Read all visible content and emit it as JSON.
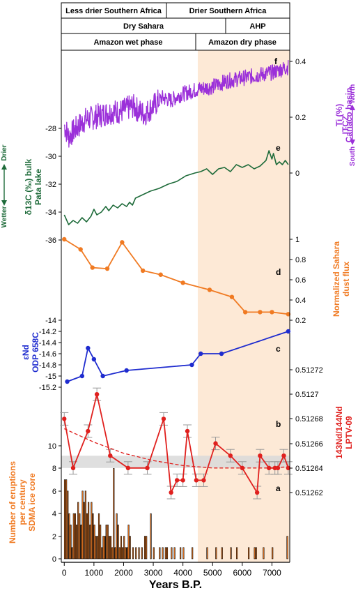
{
  "colors": {
    "shade": "#fde9d6",
    "band": "#d9d9d9",
    "ti": "#9b30d9",
    "d13c": "#1e6b3a",
    "dust": "#f07a22",
    "end": "#1f2ccf",
    "ndlptv": "#e0201e",
    "eruptions": "#f07a22",
    "axis": "#000000"
  },
  "header": {
    "row1": [
      "Less drier Southern Africa",
      "Drier Southern Africa"
    ],
    "row2": [
      "Dry Sahara",
      "AHP"
    ],
    "row3": [
      "Amazon wet phase",
      "Amazon dry phase"
    ]
  },
  "chart_data": {
    "type": "line",
    "xlabel": "Years B.P.",
    "xlim": [
      -100,
      7600
    ],
    "x_ticks": [
      "0",
      "1000",
      "2000",
      "3000",
      "4000",
      "5000",
      "6000",
      "7000"
    ],
    "shaded_region": [
      4500,
      7600
    ],
    "panels": [
      {
        "id": "f",
        "label": "f",
        "ylabel": [
          "Ti (%)",
          "Cariaco basin"
        ],
        "side_arrow": {
          "label": "ITCZ",
          "top": "North",
          "bottom": "South"
        },
        "axis_side": "right",
        "ticks": [
          "0.4",
          "0.2",
          "0"
        ],
        "type": "line",
        "series_x_range": [
          0,
          7550
        ],
        "anchors": [
          [
            0,
            0.17
          ],
          [
            150,
            0.13
          ],
          [
            400,
            0.16
          ],
          [
            700,
            0.19
          ],
          [
            1000,
            0.2
          ],
          [
            1300,
            0.21
          ],
          [
            1600,
            0.22
          ],
          [
            1900,
            0.22
          ],
          [
            2300,
            0.24
          ],
          [
            2700,
            0.21
          ],
          [
            3000,
            0.24
          ],
          [
            3300,
            0.27
          ],
          [
            3600,
            0.26
          ],
          [
            3900,
            0.28
          ],
          [
            4200,
            0.29
          ],
          [
            4500,
            0.3
          ],
          [
            5000,
            0.31
          ],
          [
            5500,
            0.33
          ],
          [
            6000,
            0.34
          ],
          [
            6500,
            0.35
          ],
          [
            7000,
            0.36
          ],
          [
            7550,
            0.38
          ]
        ]
      },
      {
        "id": "e",
        "label": "e",
        "ylabel": [
          "δ13C (‰) bulk",
          "Pata lake"
        ],
        "side_arrow": {
          "top": "Drier",
          "bottom": "Wetter"
        },
        "axis_side": "left",
        "ticks": [
          "-28",
          "-30",
          "-32",
          "-34",
          "-36"
        ],
        "type": "line",
        "points": [
          [
            0,
            -34.2
          ],
          [
            150,
            -34.9
          ],
          [
            300,
            -34.6
          ],
          [
            450,
            -34.8
          ],
          [
            600,
            -34.4
          ],
          [
            750,
            -34.7
          ],
          [
            900,
            -34.3
          ],
          [
            1000,
            -33.8
          ],
          [
            1100,
            -34.2
          ],
          [
            1250,
            -34.0
          ],
          [
            1400,
            -33.6
          ],
          [
            1500,
            -33.9
          ],
          [
            1650,
            -33.5
          ],
          [
            1800,
            -33.7
          ],
          [
            1950,
            -33.4
          ],
          [
            2100,
            -33.6
          ],
          [
            2200,
            -33.3
          ],
          [
            2300,
            -33.5
          ],
          [
            2400,
            -33.0
          ],
          [
            2600,
            -32.8
          ],
          [
            2900,
            -32.5
          ],
          [
            3200,
            -32.3
          ],
          [
            3500,
            -32.0
          ],
          [
            3800,
            -31.8
          ],
          [
            4100,
            -31.4
          ],
          [
            4400,
            -31.2
          ],
          [
            4600,
            -31.1
          ],
          [
            4800,
            -30.9
          ],
          [
            5000,
            -31.3
          ],
          [
            5200,
            -30.9
          ],
          [
            5400,
            -30.8
          ],
          [
            5600,
            -31.1
          ],
          [
            5800,
            -30.6
          ],
          [
            6000,
            -30.8
          ],
          [
            6200,
            -30.6
          ],
          [
            6400,
            -30.9
          ],
          [
            6600,
            -30.7
          ],
          [
            6800,
            -30.3
          ],
          [
            6900,
            -29.6
          ],
          [
            7000,
            -30.2
          ],
          [
            7050,
            -29.8
          ],
          [
            7150,
            -30.6
          ],
          [
            7250,
            -30.4
          ],
          [
            7350,
            -30.6
          ],
          [
            7450,
            -30.3
          ],
          [
            7550,
            -30.6
          ]
        ]
      },
      {
        "id": "d",
        "label": "d",
        "ylabel": [
          "Normalized Sahara",
          "dust flux"
        ],
        "axis_side": "right",
        "ticks": [
          "1",
          "0.8",
          "0.6",
          "0.4",
          "0.2"
        ],
        "type": "line",
        "points": [
          [
            0,
            1.0
          ],
          [
            550,
            0.9
          ],
          [
            950,
            0.72
          ],
          [
            1450,
            0.71
          ],
          [
            1950,
            0.97
          ],
          [
            2650,
            0.69
          ],
          [
            3250,
            0.65
          ],
          [
            4000,
            0.57
          ],
          [
            4900,
            0.5
          ],
          [
            5650,
            0.43
          ],
          [
            6100,
            0.28
          ],
          [
            6600,
            0.28
          ],
          [
            7000,
            0.28
          ],
          [
            7550,
            0.26
          ]
        ]
      },
      {
        "id": "c",
        "label": "c",
        "ylabel": [
          "εNd",
          "ODP 658C"
        ],
        "axis_side": "left",
        "ticks": [
          "-14",
          "-14.2",
          "-14.4",
          "-14.6",
          "-14.8",
          "-15",
          "-15.2"
        ],
        "type": "line",
        "points": [
          [
            100,
            -15.1
          ],
          [
            600,
            -15.0
          ],
          [
            800,
            -14.5
          ],
          [
            1000,
            -14.7
          ],
          [
            1300,
            -15.0
          ],
          [
            2100,
            -14.9
          ],
          [
            4300,
            -14.8
          ],
          [
            4600,
            -14.6
          ],
          [
            5300,
            -14.6
          ],
          [
            7550,
            -14.2
          ]
        ]
      },
      {
        "id": "b",
        "label": "b",
        "ylabel": [
          "143Nd/144Nd",
          "LPTV-09"
        ],
        "axis_side": "right",
        "ticks": [
          "0.51272",
          "0.5127",
          "0.51268",
          "0.51266",
          "0.51264",
          "0.51262"
        ],
        "type": "line",
        "band": [
          0.51264,
          0.51265
        ],
        "points": [
          [
            0,
            0.51268
          ],
          [
            300,
            0.51264
          ],
          [
            800,
            0.51267
          ],
          [
            1100,
            0.5127
          ],
          [
            1550,
            0.51265
          ],
          [
            2150,
            0.51264
          ],
          [
            2800,
            0.51264
          ],
          [
            3350,
            0.51268
          ],
          [
            3600,
            0.51262
          ],
          [
            3800,
            0.51263
          ],
          [
            4000,
            0.51263
          ],
          [
            4150,
            0.51267
          ],
          [
            4450,
            0.51263
          ],
          [
            4700,
            0.51263
          ],
          [
            5100,
            0.51266
          ],
          [
            5600,
            0.51265
          ],
          [
            6000,
            0.51264
          ],
          [
            6500,
            0.51262
          ],
          [
            6600,
            0.51265
          ],
          [
            6900,
            0.51264
          ],
          [
            7100,
            0.51264
          ],
          [
            7200,
            0.51264
          ],
          [
            7400,
            0.51265
          ],
          [
            7550,
            0.51264
          ]
        ],
        "trend": [
          [
            0,
            0.512672
          ],
          [
            1000,
            0.512661
          ],
          [
            2000,
            0.512652
          ],
          [
            3000,
            0.512646
          ],
          [
            4000,
            0.512642
          ],
          [
            5000,
            0.51264
          ],
          [
            6000,
            0.51264
          ],
          [
            7000,
            0.51264
          ],
          [
            7550,
            0.512641
          ]
        ]
      },
      {
        "id": "a",
        "label": "a",
        "ylabel": [
          "Number of eruptions",
          "per century",
          "SDMA ice core"
        ],
        "axis_side": "left",
        "ticks": [
          "10",
          "8",
          "6",
          "4",
          "2",
          "0"
        ],
        "type": "bar",
        "bin_width": 50,
        "bars": [
          [
            0,
            7
          ],
          [
            50,
            7
          ],
          [
            100,
            6
          ],
          [
            150,
            4
          ],
          [
            200,
            3
          ],
          [
            250,
            1
          ],
          [
            300,
            4
          ],
          [
            350,
            4
          ],
          [
            400,
            3
          ],
          [
            450,
            5
          ],
          [
            500,
            4
          ],
          [
            550,
            3
          ],
          [
            600,
            6
          ],
          [
            650,
            5
          ],
          [
            700,
            6
          ],
          [
            750,
            4
          ],
          [
            800,
            5
          ],
          [
            850,
            3
          ],
          [
            900,
            5
          ],
          [
            950,
            4
          ],
          [
            1000,
            3
          ],
          [
            1050,
            2
          ],
          [
            1100,
            2
          ],
          [
            1150,
            4
          ],
          [
            1200,
            3
          ],
          [
            1250,
            1
          ],
          [
            1300,
            2
          ],
          [
            1350,
            2
          ],
          [
            1400,
            3
          ],
          [
            1450,
            3
          ],
          [
            1500,
            2
          ],
          [
            1550,
            2
          ],
          [
            1600,
            1
          ],
          [
            1650,
            8
          ],
          [
            1700,
            1
          ],
          [
            1750,
            4
          ],
          [
            1800,
            3
          ],
          [
            1850,
            1
          ],
          [
            1900,
            2
          ],
          [
            1950,
            1
          ],
          [
            2000,
            2
          ],
          [
            2050,
            1
          ],
          [
            2100,
            1
          ],
          [
            2150,
            3
          ],
          [
            2200,
            2
          ],
          [
            2300,
            1
          ],
          [
            2400,
            1
          ],
          [
            2500,
            1
          ],
          [
            2600,
            1
          ],
          [
            2700,
            2
          ],
          [
            2750,
            2
          ],
          [
            2900,
            4
          ],
          [
            3000,
            1
          ],
          [
            3200,
            1
          ],
          [
            3300,
            1
          ],
          [
            3400,
            1
          ],
          [
            3450,
            1
          ],
          [
            3600,
            1
          ],
          [
            3700,
            1
          ],
          [
            3900,
            1
          ],
          [
            4000,
            1
          ],
          [
            4300,
            1
          ],
          [
            4800,
            1
          ],
          [
            5100,
            1
          ],
          [
            5300,
            1
          ],
          [
            5600,
            1
          ],
          [
            5800,
            1
          ],
          [
            6200,
            1
          ],
          [
            6400,
            1
          ],
          [
            6450,
            1
          ],
          [
            6700,
            1
          ],
          [
            7000,
            1
          ],
          [
            7500,
            2
          ]
        ]
      }
    ]
  }
}
